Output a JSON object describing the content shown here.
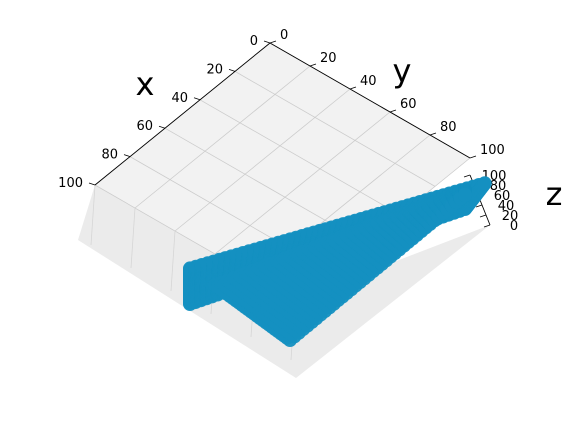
{
  "chart_data": {
    "type": "scatter",
    "projection": "3d",
    "xlabel": "x",
    "ylabel": "y",
    "zlabel": "z",
    "xlim": [
      0,
      100
    ],
    "ylim": [
      0,
      100
    ],
    "zlim": [
      0,
      100
    ],
    "x_ticks": [
      "0",
      "20",
      "40",
      "60",
      "80",
      "100"
    ],
    "y_ticks": [
      "0",
      "20",
      "40",
      "60",
      "80",
      "100"
    ],
    "z_ticks": [
      "0",
      "20",
      "40",
      "60",
      "80",
      "100"
    ],
    "grid": true,
    "marker_color": "#1490c1",
    "series": [
      {
        "description_points": [
          {
            "x": 100,
            "y": 0,
            "z": 0
          },
          {
            "x": 100,
            "y": 100,
            "z": 0
          },
          {
            "x": 0,
            "y": 100,
            "z": 0
          },
          {
            "x": 0,
            "y": 100,
            "z": 100
          },
          {
            "x": 100,
            "y": 0,
            "z": 100
          },
          {
            "x": 100,
            "y": 100,
            "z": 100
          }
        ]
      }
    ]
  }
}
